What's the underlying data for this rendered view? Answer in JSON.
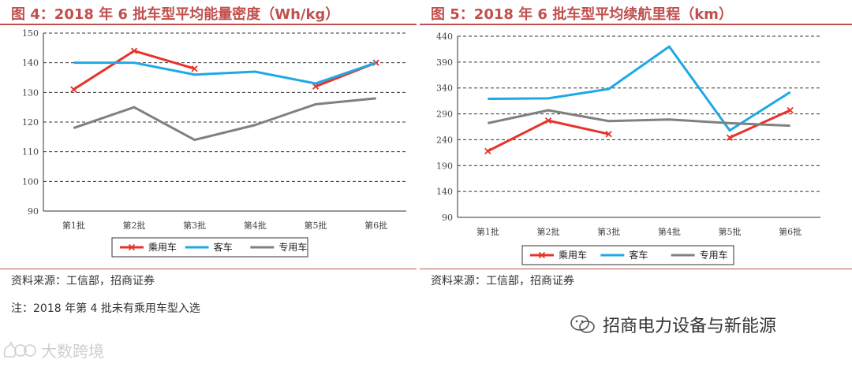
{
  "charts": [
    {
      "fig_title": "图 4：2018 年 6 批车型平均能量密度（Wh/kg）",
      "source": "资料来源：工信部，招商证券",
      "note": "注：2018 年第 4 批未有乘用车型入选"
    },
    {
      "fig_title": "图 5：2018 年 6 批车型平均续航里程（km）",
      "source": "资料来源：工信部，招商证券"
    }
  ],
  "chart_data": [
    {
      "type": "line",
      "title": "图 4：2018 年 6 批车型平均能量密度（Wh/kg）",
      "categories": [
        "第1批",
        "第2批",
        "第3批",
        "第4批",
        "第5批",
        "第6批"
      ],
      "ylim": [
        90,
        150
      ],
      "yticks": [
        "90",
        "100",
        "110",
        "120",
        "130",
        "140",
        "150"
      ],
      "series": [
        {
          "name": "乘用车",
          "values": [
            131,
            144,
            138,
            null,
            132,
            140
          ],
          "color": "#E8332A",
          "marker": "x"
        },
        {
          "name": "客车",
          "values": [
            140,
            140,
            136,
            137,
            133,
            140
          ],
          "color": "#1EA9E6",
          "marker": "none"
        },
        {
          "name": "专用车",
          "values": [
            118,
            125,
            114,
            119,
            126,
            128
          ],
          "color": "#808080",
          "marker": "none"
        }
      ]
    },
    {
      "type": "line",
      "title": "图 5：2018 年 6 批车型平均续航里程（km）",
      "categories": [
        "第1批",
        "第2批",
        "第3批",
        "第4批",
        "第5批",
        "第6批"
      ],
      "ylim": [
        90,
        440
      ],
      "yticks": [
        "90",
        "140",
        "190",
        "240",
        "290",
        "340",
        "390",
        "440"
      ],
      "series": [
        {
          "name": "乘用车",
          "values": [
            218,
            277,
            251,
            null,
            244,
            297
          ],
          "color": "#E8332A",
          "marker": "x"
        },
        {
          "name": "客车",
          "values": [
            319,
            320,
            338,
            420,
            258,
            332
          ],
          "color": "#1EA9E6",
          "marker": "none"
        },
        {
          "name": "专用车",
          "values": [
            272,
            297,
            276,
            279,
            272,
            267
          ],
          "color": "#808080",
          "marker": "none"
        }
      ]
    }
  ],
  "watermarks": {
    "right_text": "招商电力设备与新能源",
    "left_text": "大数跨境"
  }
}
